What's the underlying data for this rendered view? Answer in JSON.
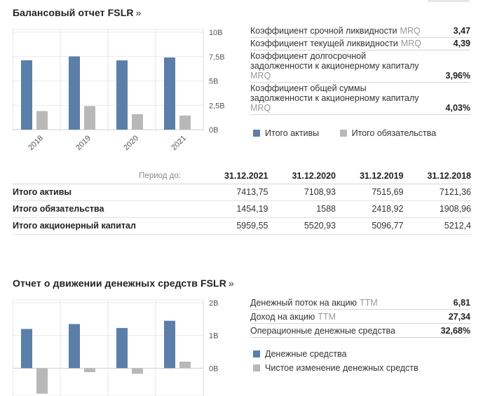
{
  "balance": {
    "title": "Балансовый отчет FSLR",
    "arrow": "»",
    "legend": [
      {
        "label": "Итого активы",
        "color": "#5b7fa8"
      },
      {
        "label": "Итого обязательства",
        "color": "#b8b8b8"
      }
    ],
    "ratios": [
      {
        "label": "Коэффициент срочной ликвидности",
        "suffix": "MRQ",
        "value": "3,47"
      },
      {
        "label": "Коэффициент текущей ликвидности",
        "suffix": "MRQ",
        "value": "4,39"
      },
      {
        "label": "Коэффициент долгосрочной задолженности к акционерному капиталу",
        "suffix": "MRQ",
        "value": "3,96%"
      },
      {
        "label": "Коэффициент общей суммы задолженности к акционерному капиталу",
        "suffix": "MRQ",
        "value": "4,03%"
      }
    ],
    "table": {
      "period_label": "Период до:",
      "dates": [
        "31.12.2021",
        "31.12.2020",
        "31.12.2019",
        "31.12.2018"
      ],
      "rows": [
        {
          "label": "Итого активы",
          "values": [
            "7413,75",
            "7108,93",
            "7515,69",
            "7121,36"
          ]
        },
        {
          "label": "Итого обязательства",
          "values": [
            "1454,19",
            "1588",
            "2418,92",
            "1908,96"
          ]
        },
        {
          "label": "Итого акционерный капитал",
          "values": [
            "5959,55",
            "5520,93",
            "5096,77",
            "5212,4"
          ]
        }
      ]
    }
  },
  "cashflow": {
    "title": "Отчет о движении денежных средств FSLR",
    "arrow": "»",
    "legend": [
      {
        "label": "Денежные средства",
        "color": "#5b7fa8"
      },
      {
        "label": "Чистое изменение денежных средств",
        "color": "#b8b8b8"
      }
    ],
    "ratios": [
      {
        "label": "Денежный поток на акцию",
        "suffix": "TTM",
        "value": "6,81"
      },
      {
        "label": "Доход на акцию",
        "suffix": "TTM",
        "value": "27,34"
      },
      {
        "label": "Операционные денежные средства",
        "suffix": "",
        "value": "32,68%"
      }
    ]
  },
  "chart_data": [
    {
      "type": "bar",
      "categories": [
        "2018",
        "2019",
        "2020",
        "2021"
      ],
      "series": [
        {
          "name": "Итого активы",
          "values": [
            7.12,
            7.52,
            7.11,
            7.41
          ]
        },
        {
          "name": "Итого обязательства",
          "values": [
            1.91,
            2.42,
            1.59,
            1.45
          ]
        }
      ],
      "yticks": [
        "10B",
        "7,5B",
        "5B",
        "2,5B",
        "0B"
      ],
      "ytick_values": [
        10,
        7.5,
        5,
        2.5,
        0
      ],
      "ylim": [
        0,
        10
      ]
    },
    {
      "type": "bar",
      "categories": [
        "2018",
        "2019",
        "2020",
        "2021"
      ],
      "series": [
        {
          "name": "Денежные средства",
          "values": [
            1.2,
            1.35,
            1.23,
            1.45
          ]
        },
        {
          "name": "Чистое изменение денежных средств",
          "values": [
            -0.78,
            -0.12,
            -0.17,
            0.2
          ]
        }
      ],
      "yticks": [
        "2B",
        "1B",
        "0B"
      ],
      "ytick_values": [
        2,
        1,
        0
      ],
      "ylim": [
        -0.85,
        2
      ]
    }
  ]
}
